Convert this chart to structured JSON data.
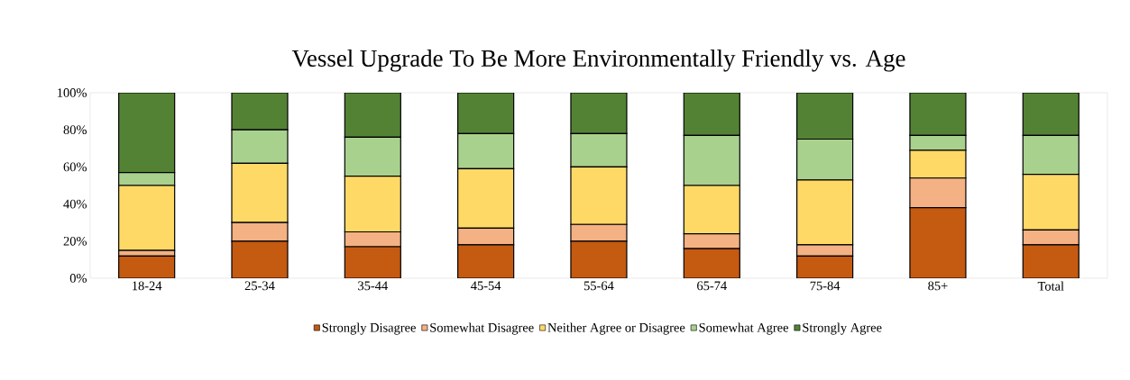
{
  "chart_data": {
    "type": "bar",
    "stacked": true,
    "title": "Vessel Upgrade To Be More Environmentally Friendly vs. Age",
    "categories": [
      "18-24",
      "25-34",
      "35-44",
      "45-54",
      "55-64",
      "65-74",
      "75-84",
      "85+",
      "Total"
    ],
    "series": [
      {
        "name": "Strongly Disagree",
        "color": "#c55a11",
        "values": [
          12,
          20,
          17,
          18,
          20,
          16,
          12,
          38,
          18
        ]
      },
      {
        "name": "Somewhat Disagree",
        "color": "#f4b183",
        "values": [
          3,
          10,
          8,
          9,
          9,
          8,
          6,
          16,
          8
        ]
      },
      {
        "name": "Neither Agree or Disagree",
        "color": "#ffd966",
        "values": [
          35,
          32,
          30,
          32,
          31,
          26,
          35,
          15,
          30
        ]
      },
      {
        "name": "Somewhat Agree",
        "color": "#a9d18e",
        "values": [
          7,
          18,
          21,
          19,
          18,
          27,
          22,
          8,
          21
        ]
      },
      {
        "name": "Strongly Agree",
        "color": "#548235",
        "values": [
          43,
          20,
          24,
          22,
          22,
          23,
          25,
          23,
          23
        ]
      }
    ],
    "ylim": [
      0,
      100
    ],
    "yticks": [
      {
        "value": 0,
        "label": "0%"
      },
      {
        "value": 20,
        "label": "20%"
      },
      {
        "value": 40,
        "label": "40%"
      },
      {
        "value": 60,
        "label": "60%"
      },
      {
        "value": 80,
        "label": "80%"
      },
      {
        "value": 100,
        "label": "100%"
      }
    ],
    "legend": "bottom"
  }
}
